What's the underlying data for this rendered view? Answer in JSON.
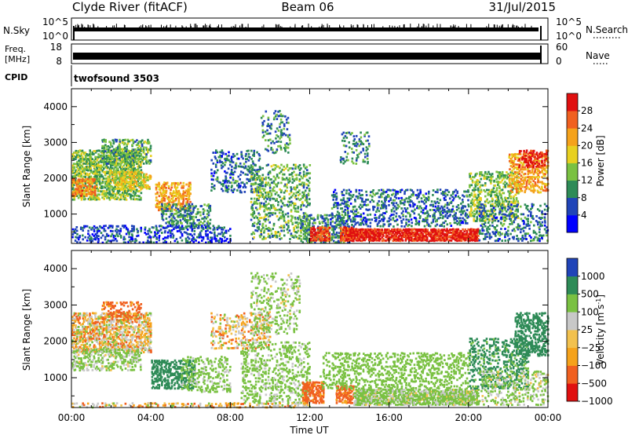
{
  "header": {
    "station": "Clyde River (fitACF)",
    "beam": "Beam 06",
    "date": "31/Jul/2015"
  },
  "panels": {
    "nsky": {
      "left_label": "N.Sky",
      "left_ticks": [
        "10^5",
        "10^0"
      ],
      "right_label": "N.Search",
      "right_ticks": [
        "10^5",
        "10^0"
      ]
    },
    "freq": {
      "left_label_1": "Freq.",
      "left_label_2": "[MHz]",
      "left_ticks": [
        "18",
        "8"
      ],
      "right_label": "Nave",
      "right_ticks": [
        "60",
        "0"
      ]
    },
    "cpid": {
      "left_label": "CPID",
      "value": "twofsound 3503"
    }
  },
  "colors": {
    "power_scale": [
      "#0000ff",
      "#2044b8",
      "#2e8b57",
      "#7ac142",
      "#e8d020",
      "#f5a21b",
      "#f06020",
      "#e01010"
    ],
    "velocity_scale": [
      "#e01010",
      "#f06020",
      "#f5a21b",
      "#f2c14e",
      "#c8c8c8",
      "#7ac142",
      "#2e8b57",
      "#2044b8"
    ],
    "ground_scatter": "#c8c8c8"
  },
  "chart_data": [
    {
      "type": "heatmap",
      "ylabel": "Slant Range [km]",
      "xlabel": "",
      "xlim": [
        0,
        24
      ],
      "ylim": [
        180,
        4500
      ],
      "y_ticks": [
        "4000",
        "3000",
        "2000",
        "1000"
      ],
      "y_tick_values": [
        4000,
        3000,
        2000,
        1000
      ],
      "x_ticks": [
        "00:00",
        "04:00",
        "08:00",
        "12:00",
        "16:00",
        "20:00",
        "00:00"
      ],
      "colorbar": {
        "label": "Power [dB]",
        "tick_labels": [
          "28",
          "24",
          "20",
          "16",
          "12",
          "8",
          "4"
        ],
        "tick_values": [
          28,
          24,
          20,
          16,
          12,
          8,
          4
        ],
        "range": [
          0,
          32
        ]
      },
      "regions": [
        {
          "t0": 0.0,
          "t1": 3.5,
          "r0": 1400,
          "r1": 2800,
          "value": 14,
          "density": 0.6
        },
        {
          "t0": 0.0,
          "t1": 1.2,
          "r0": 1500,
          "r1": 2000,
          "value": 24,
          "density": 0.5
        },
        {
          "t0": 1.5,
          "t1": 4.0,
          "r0": 2400,
          "r1": 3100,
          "value": 12,
          "density": 0.45
        },
        {
          "t0": 2.0,
          "t1": 4.0,
          "r0": 1700,
          "r1": 2200,
          "value": 18,
          "density": 0.5
        },
        {
          "t0": 4.2,
          "t1": 6.0,
          "r0": 1100,
          "r1": 1900,
          "value": 22,
          "density": 0.5
        },
        {
          "t0": 4.5,
          "t1": 7.0,
          "r0": 600,
          "r1": 1300,
          "value": 10,
          "density": 0.35
        },
        {
          "t0": 0.0,
          "t1": 8.0,
          "r0": 200,
          "r1": 700,
          "value": 6,
          "density": 0.3
        },
        {
          "t0": 7.0,
          "t1": 9.5,
          "r0": 1600,
          "r1": 2800,
          "value": 8,
          "density": 0.25
        },
        {
          "t0": 9.5,
          "t1": 11.0,
          "r0": 2700,
          "r1": 3900,
          "value": 10,
          "density": 0.2
        },
        {
          "t0": 9.0,
          "t1": 12.0,
          "r0": 300,
          "r1": 2400,
          "value": 12,
          "density": 0.3
        },
        {
          "t0": 11.5,
          "t1": 14.0,
          "r0": 200,
          "r1": 1000,
          "value": 10,
          "density": 0.4
        },
        {
          "t0": 12.0,
          "t1": 13.0,
          "r0": 250,
          "r1": 650,
          "value": 28,
          "density": 0.8
        },
        {
          "t0": 13.5,
          "t1": 14.2,
          "r0": 250,
          "r1": 650,
          "value": 28,
          "density": 0.8
        },
        {
          "t0": 14.0,
          "t1": 20.5,
          "r0": 250,
          "r1": 600,
          "value": 30,
          "density": 0.85
        },
        {
          "t0": 13.0,
          "t1": 20.0,
          "r0": 650,
          "r1": 1700,
          "value": 8,
          "density": 0.3
        },
        {
          "t0": 13.5,
          "t1": 15.0,
          "r0": 2400,
          "r1": 3300,
          "value": 10,
          "density": 0.2
        },
        {
          "t0": 20.0,
          "t1": 22.5,
          "r0": 800,
          "r1": 2200,
          "value": 14,
          "density": 0.35
        },
        {
          "t0": 22.0,
          "t1": 24.0,
          "r0": 1600,
          "r1": 2700,
          "value": 22,
          "density": 0.45
        },
        {
          "t0": 22.5,
          "t1": 24.0,
          "r0": 2300,
          "r1": 2800,
          "value": 30,
          "density": 0.4
        },
        {
          "t0": 20.5,
          "t1": 24.0,
          "r0": 250,
          "r1": 1300,
          "value": 8,
          "density": 0.25
        }
      ]
    },
    {
      "type": "heatmap",
      "ylabel": "Slant Range [km]",
      "xlabel": "Time UT",
      "xlim": [
        0,
        24
      ],
      "ylim": [
        180,
        4500
      ],
      "y_ticks": [
        "4000",
        "3000",
        "2000",
        "1000"
      ],
      "y_tick_values": [
        4000,
        3000,
        2000,
        1000
      ],
      "x_ticks": [
        "00:00",
        "04:00",
        "08:00",
        "12:00",
        "16:00",
        "20:00",
        "00:00"
      ],
      "colorbar": {
        "label": "Velocity [m s-1]",
        "tick_labels": [
          "1000",
          "500",
          "100",
          "25",
          "−25",
          "−100",
          "−500",
          "−1000"
        ],
        "tick_values": [
          1000,
          500,
          100,
          25,
          -25,
          -100,
          -500,
          -1000
        ]
      },
      "regions": [
        {
          "t0": 0.0,
          "t1": 4.0,
          "r0": 1700,
          "r1": 2800,
          "value": 0,
          "density": 0.6
        },
        {
          "t0": 0.0,
          "t1": 3.5,
          "r0": 1200,
          "r1": 1800,
          "value": 150,
          "density": 0.45
        },
        {
          "t0": 1.5,
          "t1": 3.5,
          "r0": 2600,
          "r1": 3100,
          "value": -200,
          "density": 0.35
        },
        {
          "t0": 4.0,
          "t1": 6.2,
          "r0": 700,
          "r1": 1500,
          "value": 800,
          "density": 0.5
        },
        {
          "t0": 5.5,
          "t1": 8.0,
          "r0": 600,
          "r1": 1600,
          "value": 200,
          "density": 0.3
        },
        {
          "t0": 7.0,
          "t1": 10.0,
          "r0": 1800,
          "r1": 2800,
          "value": 0,
          "density": 0.3
        },
        {
          "t0": 9.0,
          "t1": 11.5,
          "r0": 2200,
          "r1": 3900,
          "value": 150,
          "density": 0.2
        },
        {
          "t0": 8.5,
          "t1": 12.0,
          "r0": 300,
          "r1": 2000,
          "value": 200,
          "density": 0.3
        },
        {
          "t0": 11.6,
          "t1": 12.7,
          "r0": 300,
          "r1": 900,
          "value": -200,
          "density": 0.7
        },
        {
          "t0": 13.3,
          "t1": 14.2,
          "r0": 300,
          "r1": 800,
          "value": -200,
          "density": 0.7
        },
        {
          "t0": 14.2,
          "t1": 20.5,
          "r0": 250,
          "r1": 700,
          "value": 150,
          "density": 0.8
        },
        {
          "t0": 12.5,
          "t1": 20.0,
          "r0": 700,
          "r1": 1700,
          "value": 250,
          "density": 0.3
        },
        {
          "t0": 0.0,
          "t1": 12.0,
          "r0": 180,
          "r1": 320,
          "value": 0,
          "density": 0.35
        },
        {
          "t0": 20.0,
          "t1": 23.0,
          "r0": 700,
          "r1": 2100,
          "value": 600,
          "density": 0.35
        },
        {
          "t0": 22.3,
          "t1": 24.0,
          "r0": 1600,
          "r1": 2800,
          "value": 700,
          "density": 0.45
        },
        {
          "t0": 20.5,
          "t1": 24.0,
          "r0": 250,
          "r1": 1200,
          "value": 150,
          "density": 0.25
        }
      ]
    }
  ]
}
